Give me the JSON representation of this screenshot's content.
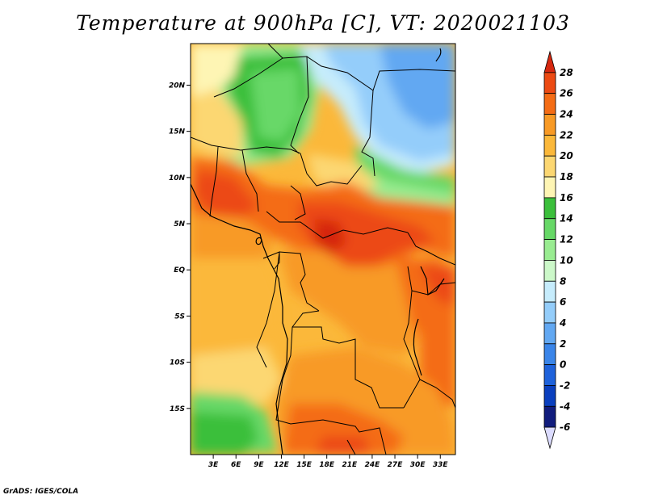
{
  "title": "Temperature at 900hPa [C], VT: 2020021103",
  "credit": "GrADS: IGES/COLA",
  "map": {
    "lon_range": [
      0,
      35
    ],
    "lat_range": [
      -20,
      24.5
    ],
    "lat_ticks": [
      "20N",
      "15N",
      "10N",
      "5N",
      "EQ",
      "5S",
      "10S",
      "15S"
    ],
    "lat_tick_values": [
      20,
      15,
      10,
      5,
      0,
      -5,
      -10,
      -15
    ],
    "lon_ticks": [
      "3E",
      "6E",
      "9E",
      "12E",
      "15E",
      "18E",
      "21E",
      "24E",
      "27E",
      "30E",
      "33E"
    ],
    "lon_tick_values": [
      3,
      6,
      9,
      12,
      15,
      18,
      21,
      24,
      27,
      30,
      33
    ]
  },
  "colorbar": {
    "labels": [
      "28",
      "26",
      "24",
      "22",
      "20",
      "18",
      "16",
      "14",
      "12",
      "10",
      "8",
      "6",
      "4",
      "2",
      "0",
      "-2",
      "-4",
      "-6"
    ],
    "colors": [
      "#d62810",
      "#ec4a13",
      "#f46c15",
      "#f89a25",
      "#fbb83a",
      "#fcd772",
      "#fef5b4",
      "#3bbf3b",
      "#67d867",
      "#99ec91",
      "#ccf8c9",
      "#c6ecfc",
      "#94cdfa",
      "#62a8f2",
      "#3a85e9",
      "#1e62db",
      "#0a3fbe",
      "#111c7d",
      "#dcdcff"
    ]
  },
  "chart_data": {
    "type": "heatmap",
    "title": "Temperature at 900hPa [C], VT: 2020021103",
    "xlabel": "",
    "ylabel": "",
    "x_tick_labels": [
      "3E",
      "6E",
      "9E",
      "12E",
      "15E",
      "18E",
      "21E",
      "24E",
      "27E",
      "30E",
      "33E"
    ],
    "y_tick_labels": [
      "20N",
      "15N",
      "10N",
      "5N",
      "EQ",
      "5S",
      "10S",
      "15S"
    ],
    "color_scale": [
      -6,
      -4,
      -2,
      0,
      2,
      4,
      6,
      8,
      10,
      12,
      14,
      16,
      18,
      20,
      22,
      24,
      26,
      28
    ],
    "units": "C"
  }
}
